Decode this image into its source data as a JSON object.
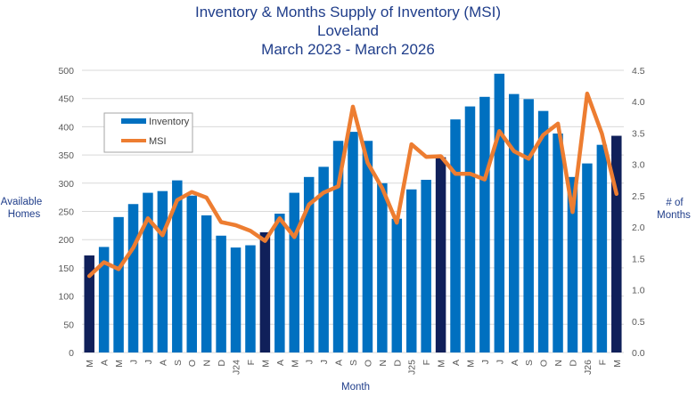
{
  "chart_data": {
    "type": "bar",
    "title": [
      "Inventory & Months Supply of Inventory (MSI)",
      "Loveland",
      "March 2023 - March 2026"
    ],
    "xlabel": "Month",
    "ylabel_left": [
      "Available",
      "Homes"
    ],
    "ylabel_right": [
      "# of",
      "Months"
    ],
    "ylim_left": [
      0,
      500
    ],
    "ylim_right": [
      0,
      4.5
    ],
    "yticks_left": [
      "0",
      "50",
      "100",
      "150",
      "200",
      "250",
      "300",
      "350",
      "400",
      "450",
      "500"
    ],
    "yticks_right": [
      "0.0",
      "0.5",
      "1.0",
      "1.5",
      "2.0",
      "2.5",
      "3.0",
      "3.5",
      "4.0",
      "4.5"
    ],
    "categories": [
      "M",
      "A",
      "M",
      "J",
      "J",
      "A",
      "S",
      "O",
      "N",
      "D",
      "J24",
      "F",
      "M",
      "A",
      "M",
      "J",
      "J",
      "A",
      "S",
      "O",
      "N",
      "D",
      "J25",
      "F",
      "M",
      "A",
      "M",
      "J",
      "J",
      "A",
      "S",
      "O",
      "N",
      "D",
      "J26",
      "F",
      "M"
    ],
    "highlight_indices": [
      0,
      12,
      24,
      36
    ],
    "colors": {
      "bar": "#0070c0",
      "bar_highlight": "#10205a",
      "line": "#ed7d31",
      "title": "#1f3d8a"
    },
    "legend": {
      "position": "top-left",
      "entries": [
        "Inventory",
        "MSI"
      ]
    },
    "series": [
      {
        "name": "Inventory",
        "axis": "left",
        "type": "bar",
        "values": [
          172,
          187,
          240,
          263,
          283,
          286,
          305,
          278,
          243,
          207,
          186,
          190,
          213,
          246,
          283,
          311,
          329,
          375,
          391,
          375,
          300,
          237,
          289,
          306,
          346,
          413,
          436,
          453,
          494,
          458,
          449,
          428,
          388,
          311,
          335,
          368,
          384
        ]
      },
      {
        "name": "MSI",
        "axis": "right",
        "type": "line",
        "values": [
          1.22,
          1.44,
          1.33,
          1.67,
          2.14,
          1.87,
          2.43,
          2.56,
          2.47,
          2.08,
          2.03,
          1.94,
          1.78,
          2.14,
          1.84,
          2.36,
          2.55,
          2.65,
          3.92,
          3.03,
          2.62,
          2.07,
          3.32,
          3.12,
          3.13,
          2.85,
          2.85,
          2.76,
          3.53,
          3.21,
          3.09,
          3.47,
          3.65,
          2.24,
          4.13,
          3.49,
          2.53
        ]
      }
    ]
  }
}
